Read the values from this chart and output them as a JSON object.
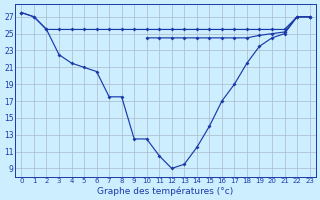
{
  "title": "Graphe des températures (°c)",
  "bg_color": "#cceeff",
  "line_color": "#1a3aaa",
  "x_labels": [
    "0",
    "1",
    "2",
    "3",
    "4",
    "5",
    "6",
    "7",
    "8",
    "9",
    "10",
    "11",
    "12",
    "13",
    "14",
    "15",
    "16",
    "17",
    "18",
    "19",
    "20",
    "21",
    "22",
    "23"
  ],
  "y_ticks": [
    9,
    11,
    13,
    15,
    17,
    19,
    21,
    23,
    25,
    27
  ],
  "ylim": [
    8.0,
    28.5
  ],
  "xlim": [
    -0.5,
    23.5
  ],
  "line_top": [
    27.5,
    27.0,
    25.5,
    25.5,
    25.5,
    25.5,
    25.5,
    25.5,
    25.5,
    25.5,
    25.5,
    25.5,
    25.5,
    25.5,
    25.5,
    25.5,
    25.5,
    25.5,
    25.5,
    25.5,
    25.5,
    25.5,
    27.0,
    27.0
  ],
  "line_mid": [
    null,
    null,
    null,
    null,
    null,
    null,
    null,
    null,
    null,
    null,
    24.5,
    24.5,
    24.5,
    24.5,
    24.5,
    24.5,
    24.5,
    24.5,
    24.5,
    24.8,
    25.0,
    25.2,
    27.0,
    27.0
  ],
  "line_bot": [
    27.5,
    27.0,
    25.5,
    22.5,
    21.5,
    21.0,
    20.5,
    17.5,
    17.5,
    12.5,
    12.5,
    10.5,
    9.0,
    9.5,
    11.5,
    14.0,
    17.0,
    19.0,
    21.5,
    23.5,
    24.5,
    25.0,
    27.0,
    27.0
  ]
}
